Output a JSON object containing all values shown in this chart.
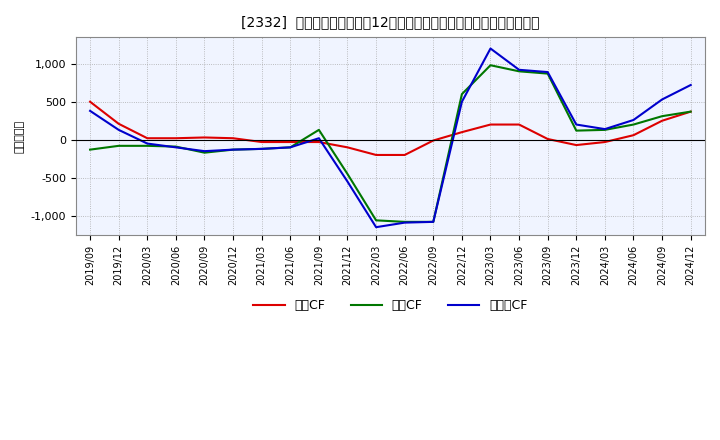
{
  "title": "[2332]  キャッシュフローの12か月移動合計の対前年同期増減額の推移",
  "ylabel": "（百万円）",
  "background_color": "#ffffff",
  "plot_background": "#f0f4ff",
  "grid_color": "#aaaaaa",
  "x_labels": [
    "2019/09",
    "2019/12",
    "2020/03",
    "2020/06",
    "2020/09",
    "2020/12",
    "2021/03",
    "2021/06",
    "2021/09",
    "2021/12",
    "2022/03",
    "2022/06",
    "2022/09",
    "2022/12",
    "2023/03",
    "2023/06",
    "2023/09",
    "2023/12",
    "2024/03",
    "2024/06",
    "2024/09",
    "2024/12"
  ],
  "operating_cf": [
    500,
    210,
    20,
    20,
    30,
    20,
    -30,
    -30,
    -30,
    -100,
    -200,
    -200,
    -10,
    100,
    200,
    200,
    10,
    -70,
    -30,
    60,
    250,
    370
  ],
  "investing_cf": [
    -130,
    -80,
    -80,
    -90,
    -170,
    -130,
    -120,
    -100,
    130,
    -450,
    -1060,
    -1080,
    -1080,
    600,
    980,
    900,
    870,
    120,
    130,
    200,
    310,
    370
  ],
  "free_cf": [
    380,
    130,
    -50,
    -100,
    -150,
    -130,
    -120,
    -100,
    20,
    -550,
    -1150,
    -1090,
    -1080,
    500,
    1200,
    920,
    890,
    200,
    140,
    260,
    530,
    720
  ],
  "ylim": [
    -1250,
    1350
  ],
  "yticks": [
    -1000,
    -500,
    0,
    500,
    1000
  ],
  "operating_color": "#dd0000",
  "investing_color": "#007700",
  "free_color": "#0000cc",
  "legend_labels": [
    "営業CF",
    "投賃CF",
    "フリーCF"
  ]
}
